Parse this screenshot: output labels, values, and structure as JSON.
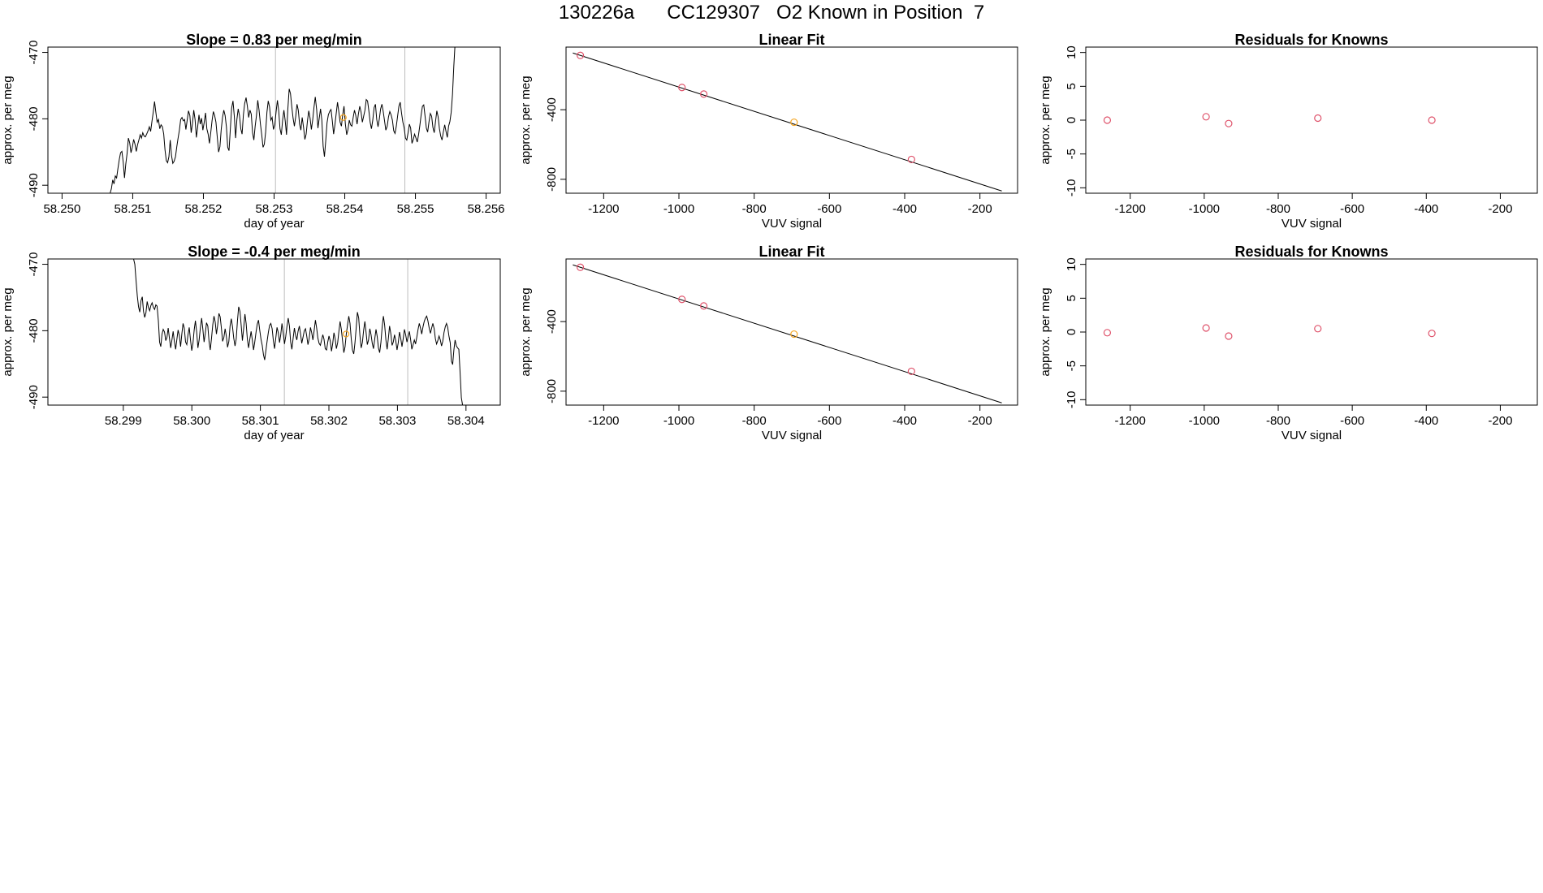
{
  "page": {
    "title": "130226a      CC129307   O2 Known in Position  7"
  },
  "colors": {
    "line": "#000000",
    "box": "#000000",
    "refline": "#bebebe",
    "point": "#df536b",
    "highlight": "#f5a623"
  },
  "chart_data": [
    {
      "id": "ts1",
      "type": "line",
      "title": "Slope =  0.83  per meg/min",
      "xlabel": "day of year",
      "ylabel": "approx. per meg",
      "xlim": [
        58.2498,
        58.2562
      ],
      "ylim": [
        -491.2,
        -469.2
      ],
      "xticks": [
        58.25,
        58.251,
        58.252,
        58.253,
        58.254,
        58.255,
        58.256
      ],
      "xtick_labels": [
        "58.250",
        "58.251",
        "58.252",
        "58.253",
        "58.254",
        "58.255",
        "58.256"
      ],
      "yticks": [
        -490,
        -480,
        -470
      ],
      "ytick_labels": [
        "-490",
        "-480",
        "-470"
      ],
      "ref_lines": [
        58.25302,
        58.25485
      ],
      "highlight": {
        "x": 58.25398,
        "y": -479.8
      },
      "series": {
        "x0": 58.25068,
        "x1": 58.25558,
        "y": [
          -491.2,
          -490.5,
          -489.2,
          -489.8,
          -488.6,
          -488.9,
          -487.5,
          -486.1,
          -485.1,
          -484.9,
          -486.5,
          -488.9,
          -486.8,
          -485.2,
          -482.9,
          -483.6,
          -485.1,
          -484.3,
          -483.1,
          -483.8,
          -484.9,
          -483.9,
          -483.2,
          -482.4,
          -482.9,
          -482.1,
          -482.6,
          -482.7,
          -482.3,
          -481.8,
          -481.2,
          -481.9,
          -480.4,
          -479.0,
          -477.4,
          -479.0,
          -480.5,
          -480.1,
          -481.5,
          -480.9,
          -481.2,
          -482.3,
          -484.7,
          -486.3,
          -486.6,
          -485.7,
          -483.2,
          -485.5,
          -486.7,
          -486.4,
          -485.7,
          -484.2,
          -482.9,
          -481.7,
          -480.1,
          -479.8,
          -480.3,
          -480.1,
          -481.6,
          -480.2,
          -478.8,
          -479.5,
          -482.1,
          -480.7,
          -478.7,
          -480.1,
          -482.8,
          -481.2,
          -479.4,
          -480.8,
          -479.9,
          -481.7,
          -480.5,
          -479.1,
          -481.5,
          -482.3,
          -483.7,
          -482.1,
          -480.3,
          -478.9,
          -479.5,
          -480.5,
          -482.7,
          -485.0,
          -484.2,
          -481.6,
          -479.8,
          -478.7,
          -479.5,
          -481.2,
          -484.3,
          -484.8,
          -481.6,
          -478.4,
          -477.3,
          -479.6,
          -482.9,
          -480.1,
          -478.5,
          -479.5,
          -481.5,
          -482.3,
          -479.4,
          -477.7,
          -476.8,
          -478.1,
          -479.8,
          -478.7,
          -479.3,
          -482.1,
          -483.2,
          -481.1,
          -479.5,
          -477.2,
          -478.7,
          -480.8,
          -482.4,
          -484.3,
          -483.8,
          -482.0,
          -479.0,
          -477.3,
          -478.2,
          -480.2,
          -479.8,
          -481.6,
          -480.9,
          -478.9,
          -477.2,
          -478.8,
          -481.5,
          -482.4,
          -480.2,
          -478.7,
          -480.3,
          -482.4,
          -478.6,
          -475.5,
          -476.2,
          -478.2,
          -479.9,
          -481.1,
          -479.7,
          -477.8,
          -478.7,
          -480.8,
          -481.7,
          -479.8,
          -481.3,
          -483.1,
          -482.3,
          -480.3,
          -478.8,
          -479.9,
          -481.6,
          -480.2,
          -478.3,
          -476.7,
          -478.6,
          -481.4,
          -479.9,
          -478.5,
          -480.2,
          -484.1,
          -485.7,
          -483.3,
          -480.6,
          -479.4,
          -478.9,
          -478.6,
          -480.3,
          -482.3,
          -480.9,
          -479.2,
          -477.5,
          -478.9,
          -480.5,
          -481.1,
          -479.4,
          -478.1,
          -480.8,
          -482.4,
          -481.6,
          -480.2,
          -480.9,
          -481.1,
          -479.8,
          -478.7,
          -479.5,
          -480.8,
          -479.3,
          -478.1,
          -479.0,
          -480.5,
          -479.6,
          -478.7,
          -477.1,
          -477.3,
          -478.8,
          -480.5,
          -481.5,
          -480.2,
          -478.3,
          -477.8,
          -480.1,
          -481.2,
          -480.0,
          -478.5,
          -477.8,
          -478.9,
          -480.3,
          -481.7,
          -481.1,
          -479.7,
          -478.9,
          -479.4,
          -480.2,
          -481.8,
          -482.2,
          -481.1,
          -479.6,
          -478.1,
          -477.5,
          -479.2,
          -480.5,
          -481.4,
          -482.9,
          -483.2,
          -482.1,
          -480.8,
          -481.4,
          -483.7,
          -483.1,
          -482.3,
          -482.9,
          -483.5,
          -482.4,
          -481.0,
          -479.4,
          -478.1,
          -477.9,
          -479.6,
          -481.4,
          -482.0,
          -480.5,
          -479.2,
          -479.6,
          -481.3,
          -482.1,
          -480.4,
          -478.8,
          -479.7,
          -481.5,
          -482.6,
          -483.2,
          -482.0,
          -480.9,
          -481.9,
          -482.8,
          -481.1,
          -480.4,
          -479.0,
          -476.3,
          -472.1,
          -468.6,
          -469.2
        ]
      }
    },
    {
      "id": "fit1",
      "type": "scatter",
      "title": "Linear Fit",
      "xlabel": "VUV signal",
      "ylabel": "approx. per meg",
      "xlim": [
        -1300,
        -100
      ],
      "ylim": [
        -880,
        -40
      ],
      "xticks": [
        -1200,
        -1000,
        -800,
        -600,
        -400,
        -200
      ],
      "xtick_labels": [
        "-1200",
        "-1000",
        "-800",
        "-600",
        "-400",
        "-200"
      ],
      "yticks": [
        -400,
        -800
      ],
      "ytick_labels": [
        "-400",
        "-800"
      ],
      "fit_line": {
        "x": [
          -1282,
          -142
        ],
        "y": [
          -74,
          -867
        ]
      },
      "points": {
        "x": [
          -1262,
          -992,
          -934,
          -694,
          -382
        ],
        "y": [
          -88,
          -272,
          -310,
          -472,
          -686
        ]
      },
      "highlight_index": 3
    },
    {
      "id": "res1",
      "type": "scatter",
      "title": "Residuals for Knowns",
      "xlabel": "VUV signal",
      "ylabel": "approx. per meg",
      "xlim": [
        -1320,
        -100
      ],
      "ylim": [
        -10.8,
        10.8
      ],
      "xticks": [
        -1200,
        -1000,
        -800,
        -600,
        -400,
        -200
      ],
      "xtick_labels": [
        "-1200",
        "-1000",
        "-800",
        "-600",
        "-400",
        "-200"
      ],
      "yticks": [
        -10,
        -5,
        0,
        5,
        10
      ],
      "ytick_labels": [
        "-10",
        "-5",
        "0",
        "5",
        "10"
      ],
      "points": {
        "x": [
          -1262,
          -995,
          -934,
          -693,
          -385
        ],
        "y": [
          0.0,
          0.5,
          -0.5,
          0.3,
          0.0
        ]
      }
    },
    {
      "id": "ts2",
      "type": "line",
      "title": "Slope =  -0.4  per meg/min",
      "xlabel": "day of year",
      "ylabel": "approx. per meg",
      "xlim": [
        58.2979,
        58.3045
      ],
      "ylim": [
        -491.2,
        -469.2
      ],
      "xticks": [
        58.299,
        58.3,
        58.301,
        58.302,
        58.303,
        58.304
      ],
      "xtick_labels": [
        "58.299",
        "58.300",
        "58.301",
        "58.302",
        "58.303",
        "58.304"
      ],
      "yticks": [
        -490,
        -480,
        -470
      ],
      "ytick_labels": [
        "-490",
        "-480",
        "-470"
      ],
      "ref_lines": [
        58.30135,
        58.30315
      ],
      "highlight": {
        "x": 58.30225,
        "y": -480.5
      },
      "series": {
        "x0": 58.29915,
        "x1": 58.30395,
        "y": [
          -469.2,
          -470.0,
          -472.4,
          -474.8,
          -476.4,
          -477.2,
          -475.5,
          -474.9,
          -477.1,
          -478.0,
          -477.3,
          -475.6,
          -476.5,
          -477.0,
          -476.2,
          -475.8,
          -476.5,
          -476.8,
          -476.1,
          -476.3,
          -478.5,
          -481.7,
          -482.4,
          -480.5,
          -479.8,
          -480.2,
          -481.5,
          -481.0,
          -479.6,
          -481.2,
          -482.6,
          -481.4,
          -480.1,
          -481.6,
          -482.8,
          -481.3,
          -479.9,
          -480.7,
          -482.4,
          -480.5,
          -478.9,
          -479.6,
          -481.7,
          -482.1,
          -480.6,
          -479.5,
          -481.3,
          -483.0,
          -481.9,
          -479.9,
          -478.5,
          -480.2,
          -482.6,
          -481.4,
          -479.6,
          -478.1,
          -479.8,
          -481.7,
          -480.4,
          -478.8,
          -479.3,
          -481.6,
          -482.9,
          -481.2,
          -479.1,
          -477.8,
          -478.7,
          -480.5,
          -479.2,
          -477.4,
          -477.9,
          -479.6,
          -481.6,
          -481.0,
          -479.7,
          -480.8,
          -482.5,
          -481.6,
          -479.3,
          -478.2,
          -479.4,
          -481.1,
          -482.3,
          -481.2,
          -478.5,
          -476.4,
          -477.1,
          -479.2,
          -481.5,
          -479.7,
          -477.5,
          -478.9,
          -481.3,
          -482.6,
          -481.3,
          -480.1,
          -481.4,
          -482.9,
          -481.7,
          -480.2,
          -479.0,
          -478.4,
          -479.9,
          -481.3,
          -482.2,
          -483.6,
          -484.4,
          -483.0,
          -481.5,
          -480.2,
          -479.2,
          -478.9,
          -479.7,
          -481.5,
          -482.7,
          -481.1,
          -479.5,
          -480.3,
          -481.8,
          -480.6,
          -478.9,
          -480.4,
          -482.0,
          -480.9,
          -479.4,
          -478.1,
          -479.3,
          -481.7,
          -482.8,
          -481.2,
          -479.6,
          -480.7,
          -481.4,
          -480.1,
          -479.3,
          -480.5,
          -481.9,
          -481.0,
          -480.0,
          -479.7,
          -480.8,
          -482.1,
          -481.2,
          -479.5,
          -480.3,
          -481.4,
          -480.0,
          -478.4,
          -479.6,
          -481.1,
          -481.9,
          -482.2,
          -481.4,
          -480.6,
          -481.3,
          -482.7,
          -482.9,
          -481.7,
          -480.8,
          -481.5,
          -483.1,
          -481.9,
          -480.3,
          -481.2,
          -482.7,
          -481.8,
          -480.1,
          -478.6,
          -479.8,
          -481.6,
          -483.3,
          -482.4,
          -480.5,
          -479.1,
          -477.8,
          -478.9,
          -481.2,
          -482.9,
          -483.5,
          -481.8,
          -479.6,
          -477.2,
          -478.1,
          -480.7,
          -482.6,
          -481.8,
          -479.9,
          -478.6,
          -480.3,
          -482.1,
          -481.4,
          -479.7,
          -480.6,
          -481.9,
          -482.7,
          -481.2,
          -479.8,
          -480.9,
          -482.6,
          -483.3,
          -481.7,
          -479.4,
          -477.8,
          -479.1,
          -481.4,
          -482.8,
          -481.2,
          -479.3,
          -480.5,
          -482.2,
          -481.7,
          -480.6,
          -481.5,
          -482.9,
          -481.8,
          -480.2,
          -481.1,
          -482.4,
          -481.2,
          -479.8,
          -480.6,
          -481.7,
          -480.9,
          -480.1,
          -481.3,
          -482.8,
          -482.1,
          -481.4,
          -482.0,
          -481.0,
          -479.8,
          -478.9,
          -479.6,
          -480.5,
          -479.4,
          -478.6,
          -478.1,
          -477.8,
          -478.5,
          -479.6,
          -480.4,
          -479.6,
          -478.9,
          -479.7,
          -481.2,
          -482.0,
          -481.5,
          -480.8,
          -481.4,
          -482.3,
          -481.6,
          -480.3,
          -479.4,
          -478.9,
          -479.5,
          -480.8,
          -481.8,
          -484.6,
          -485.1,
          -482.9,
          -481.4,
          -482.3,
          -482.6,
          -482.8,
          -486.2,
          -490.1,
          -491.2
        ]
      }
    },
    {
      "id": "fit2",
      "type": "scatter",
      "title": "Linear Fit",
      "xlabel": "VUV signal",
      "ylabel": "approx. per meg",
      "xlim": [
        -1300,
        -100
      ],
      "ylim": [
        -880,
        -40
      ],
      "xticks": [
        -1200,
        -1000,
        -800,
        -600,
        -400,
        -200
      ],
      "xtick_labels": [
        "-1200",
        "-1000",
        "-800",
        "-600",
        "-400",
        "-200"
      ],
      "yticks": [
        -400,
        -800
      ],
      "ytick_labels": [
        "-400",
        "-800"
      ],
      "fit_line": {
        "x": [
          -1282,
          -142
        ],
        "y": [
          -74,
          -867
        ]
      },
      "points": {
        "x": [
          -1262,
          -992,
          -934,
          -694,
          -382
        ],
        "y": [
          -88,
          -272,
          -310,
          -472,
          -686
        ]
      },
      "highlight_index": 3
    },
    {
      "id": "res2",
      "type": "scatter",
      "title": "Residuals for Knowns",
      "xlabel": "VUV signal",
      "ylabel": "approx. per meg",
      "xlim": [
        -1320,
        -100
      ],
      "ylim": [
        -10.8,
        10.8
      ],
      "xticks": [
        -1200,
        -1000,
        -800,
        -600,
        -400,
        -200
      ],
      "xtick_labels": [
        "-1200",
        "-1000",
        "-800",
        "-600",
        "-400",
        "-200"
      ],
      "yticks": [
        -10,
        -5,
        0,
        5,
        10
      ],
      "ytick_labels": [
        "-10",
        "-5",
        "0",
        "5",
        "10"
      ],
      "points": {
        "x": [
          -1262,
          -995,
          -934,
          -693,
          -385
        ],
        "y": [
          -0.1,
          0.6,
          -0.6,
          0.5,
          -0.2
        ]
      }
    }
  ]
}
